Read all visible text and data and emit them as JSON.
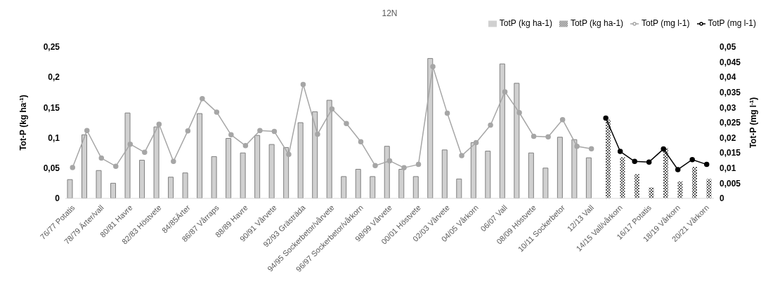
{
  "chart_data": {
    "type": "bar",
    "title": "12N",
    "ylabel": "Tot-P (kg ha$^{-1}$)",
    "y2label": "Tot-P (mg l$^{-1}$)",
    "categories": [
      "76/77 Potatis",
      null,
      "78/79 Ärter/vall",
      null,
      "80/81 Havre",
      null,
      "82/83 Höstvete",
      null,
      "84/85Ärter",
      null,
      "86/87 Vårraps",
      null,
      "88/89 Havre",
      null,
      "90/91 Vårvete",
      null,
      "92/93 Grästräda",
      null,
      "94/95 Sockerbetor/vårvete",
      null,
      "96/97 Sockerbetor/vårkorn",
      null,
      "98/99 Vårvete",
      null,
      "00/01 Höstvete",
      null,
      "02/03 Vårvete",
      null,
      "04/05 Vårkorn",
      null,
      "06/07 Vall",
      null,
      "08/09 Höstvete",
      null,
      "10/11 Sockerbetor",
      null,
      "12/13 Vall",
      null,
      "14/15 Vall/vårkorn",
      null,
      "16/17 Potatis",
      null,
      "18/19 Vårkorn",
      null,
      "20/21 Vårkorn"
    ],
    "series": [
      {
        "name": "TotP (kg ha-1)",
        "color": "#d0d0d0",
        "values": [
          0.031,
          0.105,
          0.046,
          0.025,
          0.141,
          0.063,
          0.118,
          0.035,
          0.042,
          0.14,
          0.069,
          0.099,
          0.075,
          0.104,
          0.089,
          0.084,
          0.125,
          0.143,
          0.162,
          0.036,
          0.048,
          0.036,
          0.086,
          0.048,
          0.036,
          0.231,
          0.08,
          0.032,
          0.092,
          0.078,
          0.222,
          0.19,
          0.075,
          0.05,
          0.101,
          0.097,
          0.067,
          null,
          null,
          null,
          null,
          null,
          null,
          null,
          null
        ]
      },
      {
        "name": "TotP (kg ha-1)",
        "color": "#595959",
        "values": [
          null,
          null,
          null,
          null,
          null,
          null,
          null,
          null,
          null,
          null,
          null,
          null,
          null,
          null,
          null,
          null,
          null,
          null,
          null,
          null,
          null,
          null,
          null,
          null,
          null,
          null,
          null,
          null,
          null,
          null,
          null,
          null,
          null,
          null,
          null,
          null,
          null,
          0.13,
          0.068,
          0.04,
          0.018,
          0.083,
          0.028,
          0.052,
          0.032
        ]
      },
      {
        "name": "TotP (mg l-1)",
        "type": "line",
        "axis": "y2",
        "color": "#a6a6a6",
        "values": [
          0.0102,
          0.0224,
          0.0133,
          0.0106,
          0.0179,
          0.0152,
          0.0245,
          0.0122,
          0.0223,
          0.0329,
          0.0285,
          0.021,
          0.0174,
          0.0224,
          0.0221,
          0.0145,
          0.0376,
          0.0212,
          0.0295,
          0.0247,
          0.0187,
          0.0108,
          0.0124,
          0.0101,
          0.0112,
          0.0435,
          0.0281,
          0.0141,
          0.0184,
          0.0242,
          0.0352,
          0.0283,
          0.0205,
          0.0203,
          0.026,
          0.0172,
          0.0164,
          null,
          null,
          null,
          null,
          null,
          null,
          null,
          null
        ]
      },
      {
        "name": "TotP (mg l-1)",
        "type": "line",
        "axis": "y2",
        "color": "#000000",
        "values": [
          null,
          null,
          null,
          null,
          null,
          null,
          null,
          null,
          null,
          null,
          null,
          null,
          null,
          null,
          null,
          null,
          null,
          null,
          null,
          null,
          null,
          null,
          null,
          null,
          null,
          null,
          null,
          null,
          null,
          null,
          null,
          null,
          null,
          null,
          null,
          null,
          null,
          0.0265,
          0.0155,
          0.0122,
          0.012,
          0.0163,
          0.0095,
          0.0128,
          0.0112
        ]
      }
    ],
    "ylim": [
      0,
      0.25
    ],
    "yticks": [
      0,
      {
        "value": 0.05,
        "label": "0,05"
      },
      {
        "value": 0.1,
        "label": "0,1"
      },
      {
        "value": 0.15,
        "label": "0,15"
      },
      {
        "value": 0.2,
        "label": "0,2"
      },
      {
        "value": 0.25,
        "label": "0,25"
      }
    ],
    "y2lim": [
      0,
      0.05
    ],
    "y2ticks": [
      0,
      {
        "value": 0.005,
        "label": "0,005"
      },
      {
        "value": 0.01,
        "label": "0,01"
      },
      {
        "value": 0.015,
        "label": "0,015"
      },
      {
        "value": 0.02,
        "label": "0,02"
      },
      {
        "value": 0.025,
        "label": "0,025"
      },
      {
        "value": 0.03,
        "label": "0,03"
      },
      {
        "value": 0.035,
        "label": "0,035"
      },
      {
        "value": 0.04,
        "label": "0,04"
      },
      {
        "value": 0.045,
        "label": "0,045"
      },
      {
        "value": 0.05,
        "label": "0,05"
      }
    ],
    "grid": false,
    "legend": "top right",
    "marker": "circle",
    "line_style": "solid"
  }
}
